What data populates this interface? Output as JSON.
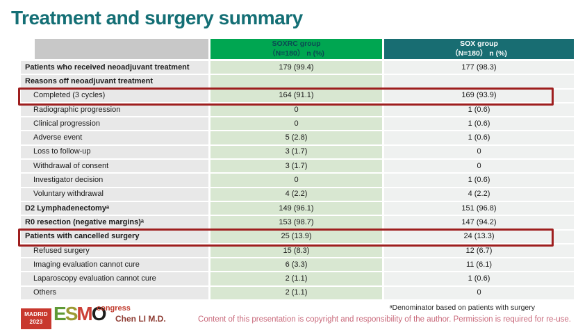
{
  "title": "Treatment and surgery summary",
  "colors": {
    "title": "#146f75",
    "soxrc_header": "#00a651",
    "sox_header": "#186d72",
    "highlight_border": "#9e1e1e"
  },
  "table": {
    "header": {
      "soxrc": {
        "line1": "SOXRC group",
        "line2": "（N=180） n (%)"
      },
      "sox": {
        "line1": "SOX group",
        "line2": "（N=180） n (%)"
      }
    },
    "rows": [
      {
        "label": "Patients who received neoadjuvant treatment",
        "soxrc": "179 (99.4)",
        "sox": "177 (98.3)",
        "bold": true,
        "indent": false,
        "highlight": false
      },
      {
        "label": "Reasons off neoadjuvant treatment",
        "soxrc": "",
        "sox": "",
        "bold": true,
        "indent": false,
        "highlight": false
      },
      {
        "label": "Completed (3 cycles)",
        "soxrc": "164 (91.1)",
        "sox": "169 (93.9)",
        "bold": false,
        "indent": true,
        "highlight": true
      },
      {
        "label": "Radiographic progression",
        "soxrc": "0",
        "sox": "1 (0.6)",
        "bold": false,
        "indent": true,
        "highlight": false
      },
      {
        "label": "Clinical progression",
        "soxrc": "0",
        "sox": "1 (0.6)",
        "bold": false,
        "indent": true,
        "highlight": false
      },
      {
        "label": "Adverse event",
        "soxrc": "5 (2.8)",
        "sox": "1 (0.6)",
        "bold": false,
        "indent": true,
        "highlight": false
      },
      {
        "label": "Loss to follow-up",
        "soxrc": "3 (1.7)",
        "sox": "0",
        "bold": false,
        "indent": true,
        "highlight": false
      },
      {
        "label": "Withdrawal of consent",
        "soxrc": "3 (1.7)",
        "sox": "0",
        "bold": false,
        "indent": true,
        "highlight": false
      },
      {
        "label": "Investigator decision",
        "soxrc": "0",
        "sox": "1 (0.6)",
        "bold": false,
        "indent": true,
        "highlight": false
      },
      {
        "label": "Voluntary withdrawal",
        "soxrc": "4 (2.2)",
        "sox": "4 (2.2)",
        "bold": false,
        "indent": true,
        "highlight": false
      },
      {
        "label": "D2 Lymphadenectomyᵃ",
        "soxrc": "149 (96.1)",
        "sox": "151 (96.8)",
        "bold": true,
        "indent": false,
        "highlight": false
      },
      {
        "label": "R0 resection (negative margins)ᵃ",
        "soxrc": "153 (98.7)",
        "sox": "147 (94.2)",
        "bold": true,
        "indent": false,
        "highlight": false
      },
      {
        "label": "Patients with cancelled surgery",
        "soxrc": "25 (13.9)",
        "sox": "24 (13.3)",
        "bold": true,
        "indent": false,
        "highlight": true
      },
      {
        "label": "Refused surgery",
        "soxrc": "15 (8.3)",
        "sox": "12 (6.7)",
        "bold": false,
        "indent": true,
        "highlight": false
      },
      {
        "label": "Imaging evaluation cannot cure",
        "soxrc": "6 (3.3)",
        "sox": "11 (6.1)",
        "bold": false,
        "indent": true,
        "highlight": false
      },
      {
        "label": "Laparoscopy evaluation cannot cure",
        "soxrc": "2 (1.1)",
        "sox": "1 (0.6)",
        "bold": false,
        "indent": true,
        "highlight": false
      },
      {
        "label": "Others",
        "soxrc": "2 (1.1)",
        "sox": "0",
        "bold": false,
        "indent": true,
        "highlight": false
      }
    ]
  },
  "footer": {
    "footnote": "ᵃDenominator based on patients with surgery",
    "copyright": "Content of this presentation is copyright and responsibility of the author. Permission is required for re-use.",
    "presenter": "Chen LI M.D.",
    "logo": {
      "location": "MADRID",
      "year": "2023",
      "esmo": [
        "E",
        "S",
        "M",
        "O"
      ],
      "congress": "congress"
    }
  }
}
